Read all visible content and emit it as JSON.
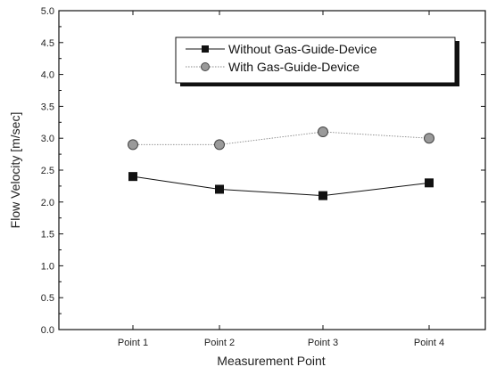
{
  "chart_data": {
    "type": "line",
    "categories": [
      "Point 1",
      "Point 2",
      "Point 3",
      "Point 4"
    ],
    "series": [
      {
        "name": "Without Gas-Guide-Device",
        "values": [
          2.4,
          2.2,
          2.1,
          2.3
        ],
        "marker": "square",
        "color": "#111111"
      },
      {
        "name": "With Gas-Guide-Device",
        "values": [
          2.9,
          2.9,
          3.1,
          3.0
        ],
        "marker": "circle",
        "color": "#888888"
      }
    ],
    "xlabel": "Measurement  Point",
    "ylabel": "Flow Velocity [m/sec]",
    "ylim": [
      0.0,
      5.0
    ],
    "yticks": [
      "0.0",
      "0.5",
      "1.0",
      "1.5",
      "2.0",
      "2.5",
      "3.0",
      "3.5",
      "4.0",
      "4.5",
      "5.0"
    ],
    "legend_position": "top-right",
    "grid": false
  }
}
